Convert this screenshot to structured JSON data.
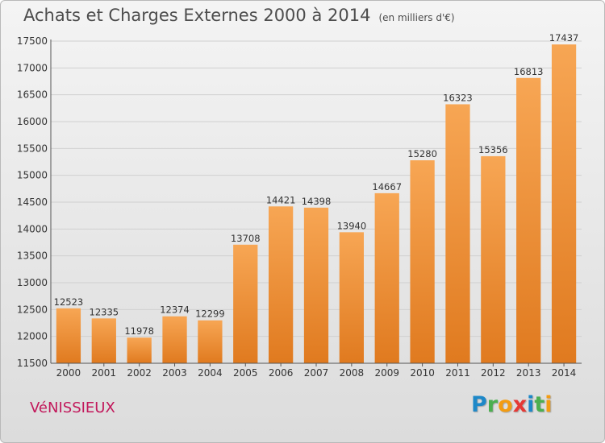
{
  "title": "Achats et Charges Externes 2000 à 2014",
  "unit_note": "(en milliers d'€)",
  "commune": "VéNISSIEUX",
  "logo": {
    "letters": [
      "P",
      "r",
      "o",
      "x",
      "i",
      "t",
      "i"
    ],
    "colors": [
      "#1e88c8",
      "#4caf50",
      "#f39c12",
      "#e53935",
      "#1e88c8",
      "#4caf50",
      "#f39c12"
    ]
  },
  "colors": {
    "bar_top": "#f7a654",
    "bar_bottom": "#e07a1f",
    "grid": "#d0d0d0",
    "axis": "#555555"
  },
  "chart_data": {
    "type": "bar",
    "categories": [
      "2000",
      "2001",
      "2002",
      "2003",
      "2004",
      "2005",
      "2006",
      "2007",
      "2008",
      "2009",
      "2010",
      "2011",
      "2012",
      "2013",
      "2014"
    ],
    "values": [
      12523,
      12335,
      11978,
      12374,
      12299,
      13708,
      14421,
      14398,
      13940,
      14667,
      15280,
      16323,
      15356,
      16813,
      17437
    ],
    "ylim": [
      11500,
      17500
    ],
    "yticks": [
      11500,
      12000,
      12500,
      13000,
      13500,
      14000,
      14500,
      15000,
      15500,
      16000,
      16500,
      17000,
      17500
    ],
    "grid": true
  }
}
